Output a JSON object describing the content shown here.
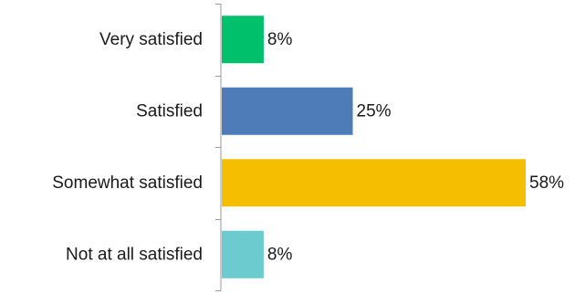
{
  "chart_data": {
    "type": "bar",
    "orientation": "horizontal",
    "categories": [
      "Very satisfied",
      "Satisfied",
      "Somewhat satisfied",
      "Not at all satisfied"
    ],
    "values": [
      8,
      25,
      58,
      8
    ],
    "data_labels": [
      "8%",
      "25%",
      "58%",
      "8%"
    ],
    "colors": [
      "#00C06B",
      "#4E7CB8",
      "#F6BE00",
      "#6CCBCE"
    ],
    "title": "",
    "xlabel": "",
    "ylabel": "",
    "xlim": [
      0,
      58
    ],
    "grid": false,
    "legend": "none"
  }
}
